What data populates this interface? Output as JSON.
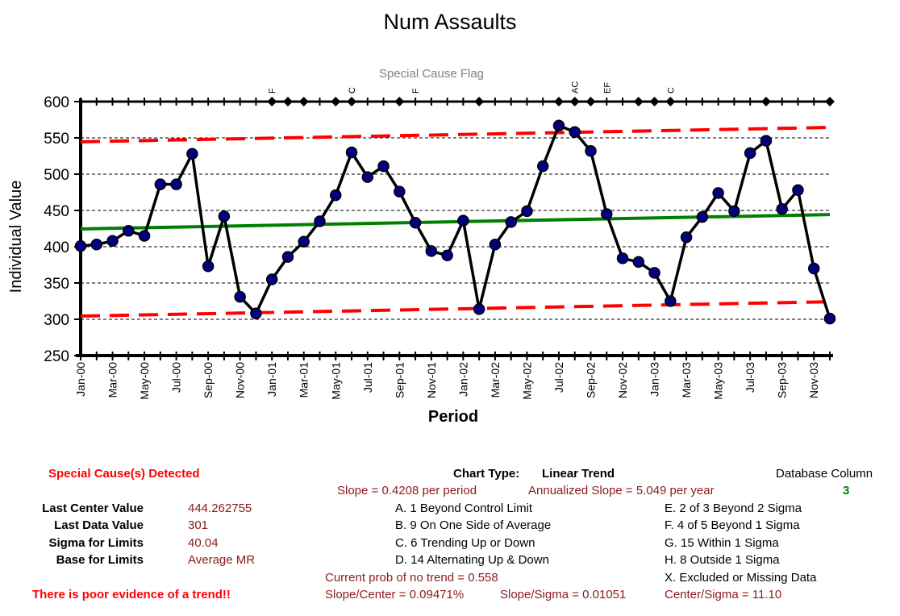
{
  "chart_data": {
    "type": "line",
    "title": "Num Assaults",
    "subtitle": "Special Cause Flag",
    "xlabel": "Period",
    "ylabel": "Individual Value",
    "ylim": [
      250,
      600
    ],
    "yticks": [
      250,
      300,
      350,
      400,
      450,
      500,
      550,
      600
    ],
    "x_tick_labels": [
      "Jan-00",
      "Mar-00",
      "May-00",
      "Jul-00",
      "Sep-00",
      "Nov-00",
      "Jan-01",
      "Mar-01",
      "May-01",
      "Jul-01",
      "Sep-01",
      "Nov-01",
      "Jan-02",
      "Mar-02",
      "May-02",
      "Jul-02",
      "Sep-02",
      "Nov-02",
      "Jan-03",
      "Mar-03",
      "May-03",
      "Jul-03",
      "Sep-03",
      "Nov-03"
    ],
    "grid": "horizontal dashed",
    "series": [
      {
        "name": "Individual Value",
        "values": [
          401,
          403,
          408,
          422,
          415,
          486,
          486,
          528,
          373,
          442,
          331,
          308,
          355,
          386,
          407,
          435,
          471,
          530,
          496,
          511,
          476,
          433,
          394,
          388,
          436,
          314,
          403,
          434,
          449,
          511,
          567,
          558,
          532,
          445,
          384,
          379,
          364,
          325,
          413,
          441,
          474,
          449,
          529,
          546,
          452,
          478,
          370,
          301
        ]
      },
      {
        "name": "Center Line",
        "values": [
          424.5,
          444.3
        ]
      },
      {
        "name": "Upper Control Limit",
        "values": [
          544.6,
          564.4
        ]
      },
      {
        "name": "Lower Control Limit",
        "values": [
          304.4,
          324.2
        ]
      }
    ],
    "special_cause_flags": [
      {
        "x": 12,
        "label": "F"
      },
      {
        "x": 17,
        "label": "C"
      },
      {
        "x": 21,
        "label": "F"
      },
      {
        "x": 31,
        "label": "AC"
      },
      {
        "x": 33,
        "label": "EF"
      },
      {
        "x": 37,
        "label": "C"
      }
    ],
    "flag_markers": [
      12,
      13,
      14,
      16,
      17,
      20,
      25,
      30,
      31,
      32,
      35,
      36,
      37,
      43,
      47
    ],
    "colors": {
      "data": "#000000",
      "marker": "#000080",
      "center": "#008000",
      "limits": "#ff0000",
      "flag_label": "#808080"
    }
  },
  "panel": {
    "special_causes": "Special Cause(s) Detected",
    "poor_evidence": "There is poor evidence of a trend!!",
    "stats": [
      {
        "label": "Last Center Value",
        "value": "444.262755"
      },
      {
        "label": "Last Data Value",
        "value": "301"
      },
      {
        "label": "Sigma for Limits",
        "value": "40.04"
      },
      {
        "label": "Base for Limits",
        "value": "Average MR"
      }
    ],
    "chart_type_label": "Chart Type:",
    "chart_type_value": "Linear Trend",
    "slope": "Slope = 0.4208 per period",
    "annualized": "Annualized Slope = 5.049 per year",
    "rules_left": [
      "A. 1 Beyond Control Limit",
      "B. 9 On One Side of Average",
      "C. 6 Trending Up or Down",
      "D. 14 Alternating  Up & Down"
    ],
    "rules_right": [
      "E. 2 of 3 Beyond 2 Sigma",
      "F. 4 of 5 Beyond 1 Sigma",
      "G. 15 Within 1 Sigma",
      "H. 8 Outside 1 Sigma",
      "X. Excluded or Missing Data"
    ],
    "prob_no_trend": "Current prob of no trend = 0.558",
    "slope_center": "Slope/Center = 0.09471%",
    "slope_sigma": "Slope/Sigma = 0.01051",
    "center_sigma": "Center/Sigma = 11.10",
    "db_column_label": "Database Column",
    "db_column_value": "3"
  }
}
